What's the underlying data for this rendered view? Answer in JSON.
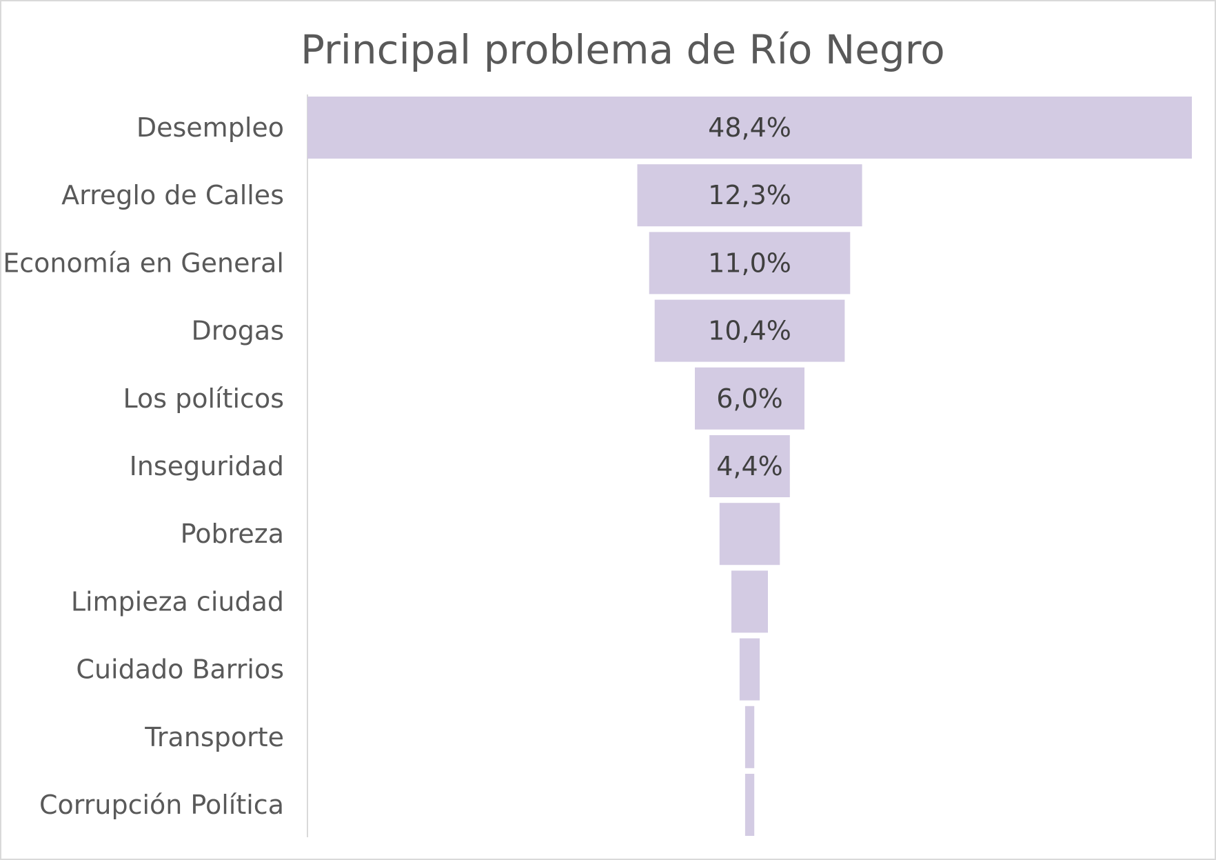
{
  "chart_data": {
    "type": "bar",
    "subtype": "funnel",
    "title": "Principal problema de Río Negro",
    "categories": [
      "Desempleo",
      "Arreglo de Calles",
      "Economía en General",
      "Drogas",
      "Los políticos",
      "Inseguridad",
      "Pobreza",
      "Limpieza ciudad",
      "Cuidado Barrios",
      "Transporte",
      "Corrupción Política"
    ],
    "values": [
      48.4,
      12.3,
      11.0,
      10.4,
      6.0,
      4.4,
      3.3,
      2.0,
      1.1,
      0.5,
      0.5
    ],
    "data_labels": [
      "48,4%",
      "12,3%",
      "11,0%",
      "10,4%",
      "6,0%",
      "4,4%",
      "",
      "",
      "",
      "",
      ""
    ],
    "bar_color": "#d3cbe3",
    "xlabel": "",
    "ylabel": "",
    "legend": "none",
    "grid": false
  }
}
